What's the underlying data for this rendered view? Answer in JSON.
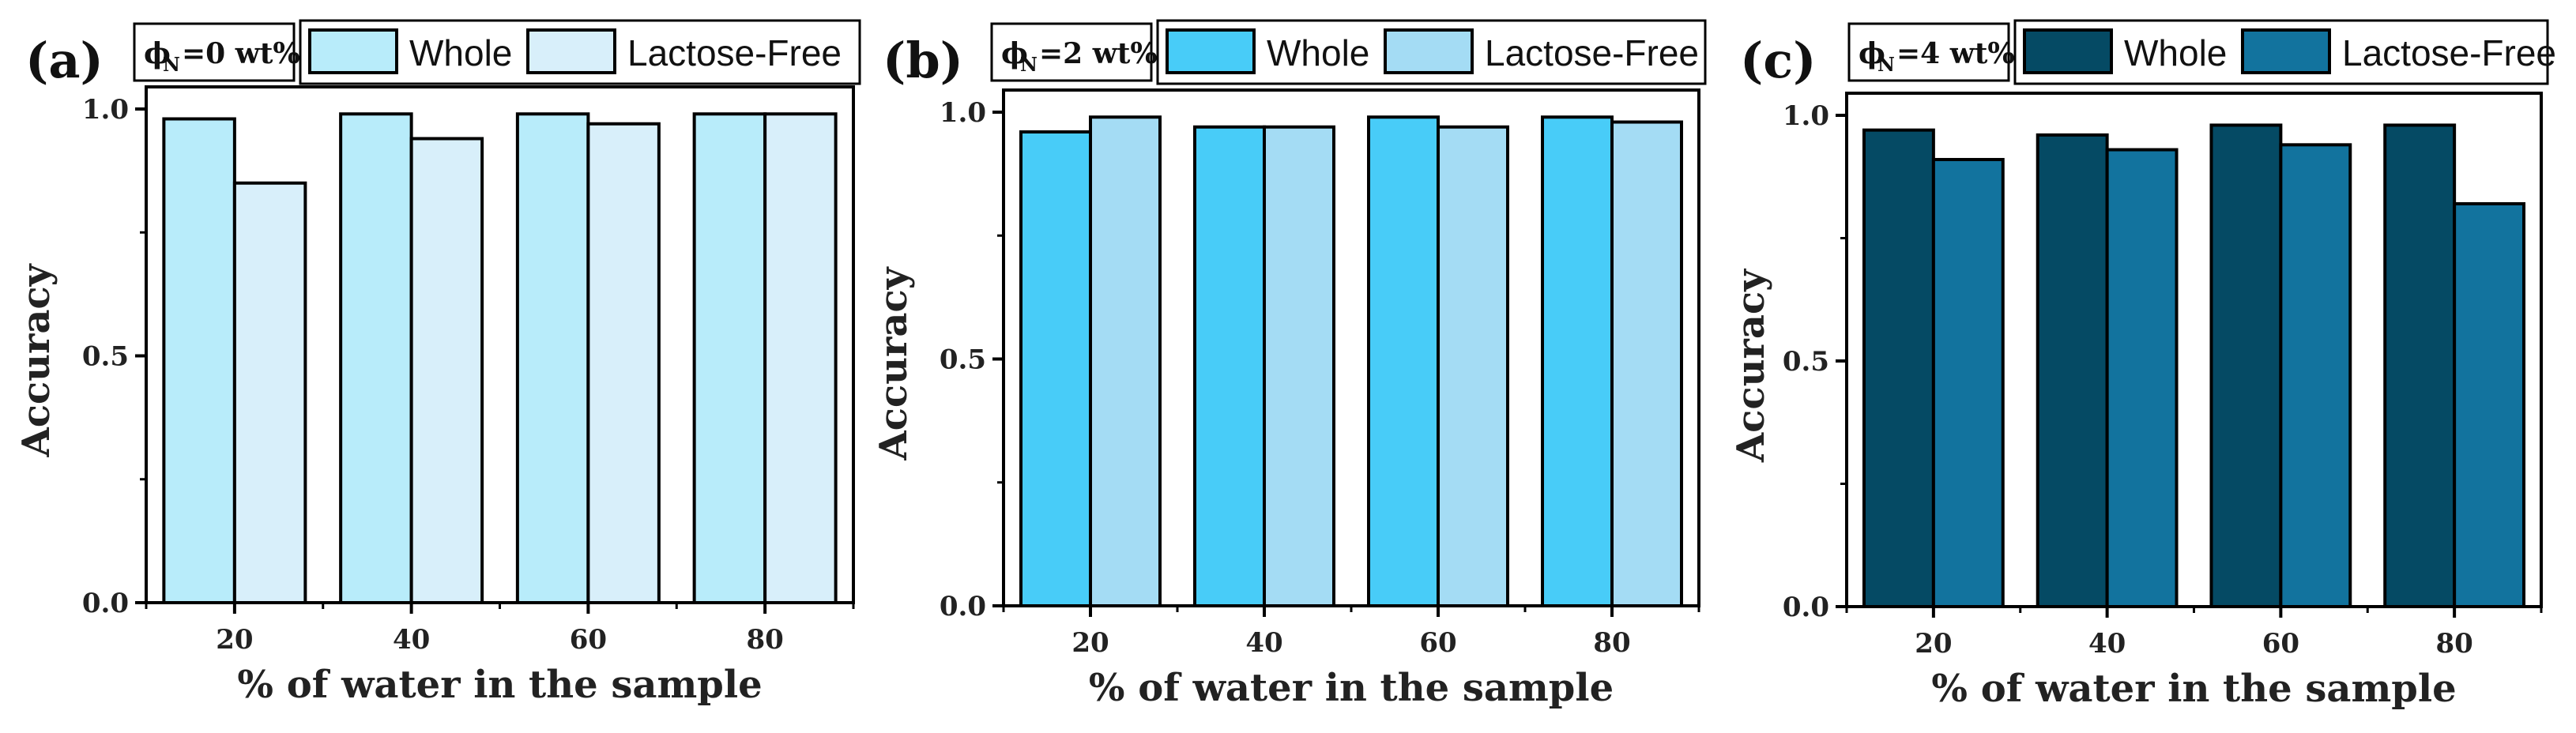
{
  "chart_data": [
    {
      "type": "bar",
      "panel_label": "(a)",
      "annotation": {
        "symbol": "ϕ",
        "subscript": "N",
        "text": "=0 wt%"
      },
      "categories": [
        "20",
        "40",
        "60",
        "80"
      ],
      "series": [
        {
          "name": "Whole",
          "values": [
            0.98,
            0.99,
            0.99,
            0.99
          ],
          "color": "#b8ecfa"
        },
        {
          "name": "Lactose-Free",
          "values": [
            0.85,
            0.94,
            0.97,
            0.99
          ],
          "color": "#d8effa"
        }
      ],
      "xlabel": "% of water in the sample",
      "ylabel": "Accuracy",
      "ylim": [
        0,
        1.0
      ],
      "yticks": [
        "0.0",
        "0.5",
        "1.0"
      ],
      "legend_position": "top"
    },
    {
      "type": "bar",
      "panel_label": "(b)",
      "annotation": {
        "symbol": "ϕ",
        "subscript": "N",
        "text": "=2 wt%"
      },
      "categories": [
        "20",
        "40",
        "60",
        "80"
      ],
      "series": [
        {
          "name": "Whole",
          "values": [
            0.96,
            0.97,
            0.99,
            0.99
          ],
          "color": "#48ccf8"
        },
        {
          "name": "Lactose-Free",
          "values": [
            0.99,
            0.97,
            0.97,
            0.98
          ],
          "color": "#a4dcf4"
        }
      ],
      "xlabel": "% of water in the sample",
      "ylabel": "Accuracy",
      "ylim": [
        0,
        1.0
      ],
      "yticks": [
        "0.0",
        "0.5",
        "1.0"
      ],
      "legend_position": "top"
    },
    {
      "type": "bar",
      "panel_label": "(c)",
      "annotation": {
        "symbol": "ϕ",
        "subscript": "N",
        "text": "=4 wt%"
      },
      "categories": [
        "20",
        "40",
        "60",
        "80"
      ],
      "series": [
        {
          "name": "Whole",
          "values": [
            0.97,
            0.96,
            0.98,
            0.98
          ],
          "color": "#054a64"
        },
        {
          "name": "Lactose-Free",
          "values": [
            0.91,
            0.93,
            0.94,
            0.82
          ],
          "color": "#12739e"
        }
      ],
      "xlabel": "% of water in the sample",
      "ylabel": "Accuracy",
      "ylim": [
        0,
        1.0
      ],
      "yticks": [
        "0.0",
        "0.5",
        "1.0"
      ],
      "legend_position": "top"
    }
  ]
}
